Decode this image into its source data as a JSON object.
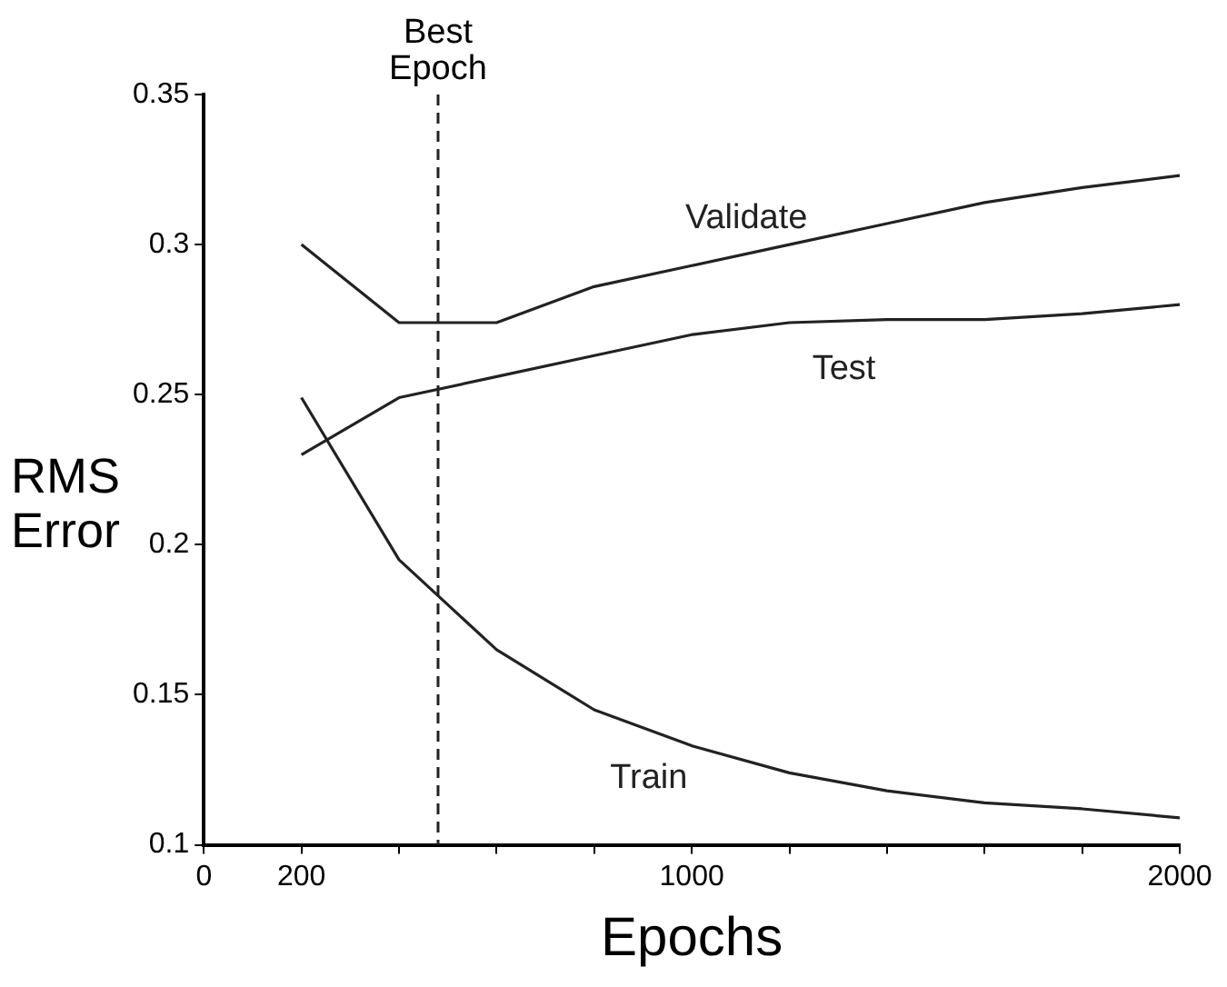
{
  "chart_data": {
    "type": "line",
    "xlabel": "Epochs",
    "ylabel": "RMS Error",
    "x": [
      200,
      400,
      600,
      800,
      1000,
      1200,
      1400,
      1600,
      1800,
      2000
    ],
    "series": [
      {
        "name": "Validate",
        "color": "#222222",
        "values": [
          0.3,
          0.274,
          0.274,
          0.286,
          0.293,
          0.3,
          0.307,
          0.314,
          0.319,
          0.323
        ]
      },
      {
        "name": "Test",
        "color": "#222222",
        "values": [
          0.23,
          0.249,
          0.256,
          0.263,
          0.27,
          0.274,
          0.275,
          0.275,
          0.277,
          0.28
        ]
      },
      {
        "name": "Train",
        "color": "#222222",
        "values": [
          0.249,
          0.195,
          0.165,
          0.145,
          0.133,
          0.124,
          0.118,
          0.114,
          0.112,
          0.109
        ]
      }
    ],
    "xlim": [
      0,
      2000
    ],
    "xticks": [
      0,
      200,
      {
        "value": 400,
        "label": null
      },
      {
        "value": 600,
        "label": null
      },
      {
        "value": 800,
        "label": null
      },
      1000,
      {
        "value": 1200,
        "label": null
      },
      {
        "value": 1400,
        "label": null
      },
      {
        "value": 1600,
        "label": null
      },
      {
        "value": 1800,
        "label": null
      },
      2000
    ],
    "ylim": [
      0.1,
      0.35
    ],
    "yticks": [
      0.1,
      0.15,
      0.2,
      0.25,
      0.3,
      0.35
    ],
    "ref_lines": [
      {
        "axis": "x",
        "value": 480,
        "label": "Best Epoch",
        "line_style": "dashed",
        "color": "#222222"
      }
    ],
    "grid": false,
    "legend": false,
    "marker": "none",
    "line_style": "solid"
  }
}
